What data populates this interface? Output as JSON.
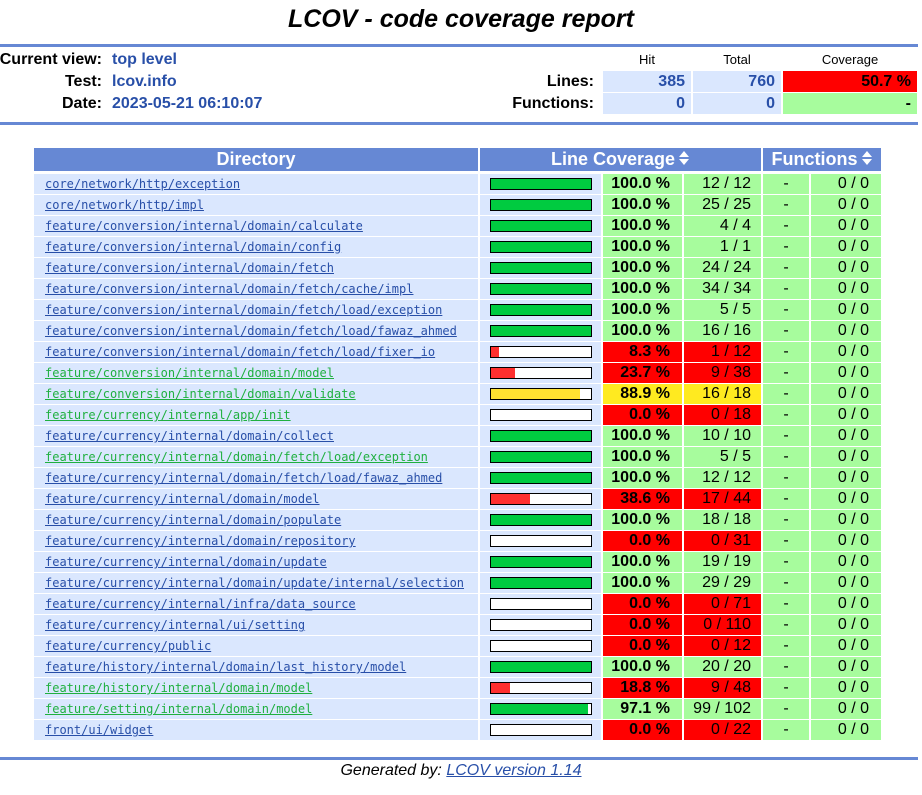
{
  "title": "LCOV - code coverage report",
  "header": {
    "current_view_label": "Current view:",
    "current_view": "top level",
    "test_label": "Test:",
    "test": "lcov.info",
    "date_label": "Date:",
    "date": "2023-05-21 06:10:07",
    "col_hit": "Hit",
    "col_total": "Total",
    "col_coverage": "Coverage",
    "lines_label": "Lines:",
    "lines_hit": "385",
    "lines_total": "760",
    "lines_coverage": "50.7 %",
    "functions_label": "Functions:",
    "functions_hit": "0",
    "functions_total": "0",
    "functions_coverage": "-"
  },
  "table": {
    "col_directory": "Directory",
    "col_line_coverage": "Line Coverage",
    "col_functions": "Functions"
  },
  "colors": {
    "header_blue": "#6688d4",
    "cell_blue": "#dae7fe",
    "link_blue": "#284fa8",
    "visited_green": "#20b040",
    "hi_green": "#a7fc9d",
    "med_yellow": "#ffea20",
    "lo_red": "#ff0000",
    "bar_green": "#00cb40",
    "bar_yellow": "#ffe231",
    "bar_red": "#ff2f2f"
  },
  "rows": [
    {
      "dir": "core/network/http/exception",
      "pct": "100.0 %",
      "count": "12 / 12",
      "ratio": 1.0,
      "level": "hi",
      "visited": false,
      "frate": "-",
      "fcount": "0 / 0"
    },
    {
      "dir": "core/network/http/impl",
      "pct": "100.0 %",
      "count": "25 / 25",
      "ratio": 1.0,
      "level": "hi",
      "visited": false,
      "frate": "-",
      "fcount": "0 / 0"
    },
    {
      "dir": "feature/conversion/internal/domain/calculate",
      "pct": "100.0 %",
      "count": "4 / 4",
      "ratio": 1.0,
      "level": "hi",
      "visited": false,
      "frate": "-",
      "fcount": "0 / 0"
    },
    {
      "dir": "feature/conversion/internal/domain/config",
      "pct": "100.0 %",
      "count": "1 / 1",
      "ratio": 1.0,
      "level": "hi",
      "visited": false,
      "frate": "-",
      "fcount": "0 / 0"
    },
    {
      "dir": "feature/conversion/internal/domain/fetch",
      "pct": "100.0 %",
      "count": "24 / 24",
      "ratio": 1.0,
      "level": "hi",
      "visited": false,
      "frate": "-",
      "fcount": "0 / 0"
    },
    {
      "dir": "feature/conversion/internal/domain/fetch/cache/impl",
      "pct": "100.0 %",
      "count": "34 / 34",
      "ratio": 1.0,
      "level": "hi",
      "visited": false,
      "frate": "-",
      "fcount": "0 / 0"
    },
    {
      "dir": "feature/conversion/internal/domain/fetch/load/exception",
      "pct": "100.0 %",
      "count": "5 / 5",
      "ratio": 1.0,
      "level": "hi",
      "visited": false,
      "frate": "-",
      "fcount": "0 / 0"
    },
    {
      "dir": "feature/conversion/internal/domain/fetch/load/fawaz_ahmed",
      "pct": "100.0 %",
      "count": "16 / 16",
      "ratio": 1.0,
      "level": "hi",
      "visited": false,
      "frate": "-",
      "fcount": "0 / 0"
    },
    {
      "dir": "feature/conversion/internal/domain/fetch/load/fixer_io",
      "pct": "8.3 %",
      "count": "1 / 12",
      "ratio": 0.083,
      "level": "lo",
      "visited": false,
      "frate": "-",
      "fcount": "0 / 0"
    },
    {
      "dir": "feature/conversion/internal/domain/model",
      "pct": "23.7 %",
      "count": "9 / 38",
      "ratio": 0.237,
      "level": "lo",
      "visited": true,
      "frate": "-",
      "fcount": "0 / 0"
    },
    {
      "dir": "feature/conversion/internal/domain/validate",
      "pct": "88.9 %",
      "count": "16 / 18",
      "ratio": 0.889,
      "level": "med",
      "visited": true,
      "frate": "-",
      "fcount": "0 / 0"
    },
    {
      "dir": "feature/currency/internal/app/init",
      "pct": "0.0 %",
      "count": "0 / 18",
      "ratio": 0.0,
      "level": "lo",
      "visited": true,
      "frate": "-",
      "fcount": "0 / 0"
    },
    {
      "dir": "feature/currency/internal/domain/collect",
      "pct": "100.0 %",
      "count": "10 / 10",
      "ratio": 1.0,
      "level": "hi",
      "visited": false,
      "frate": "-",
      "fcount": "0 / 0"
    },
    {
      "dir": "feature/currency/internal/domain/fetch/load/exception",
      "pct": "100.0 %",
      "count": "5 / 5",
      "ratio": 1.0,
      "level": "hi",
      "visited": true,
      "frate": "-",
      "fcount": "0 / 0"
    },
    {
      "dir": "feature/currency/internal/domain/fetch/load/fawaz_ahmed",
      "pct": "100.0 %",
      "count": "12 / 12",
      "ratio": 1.0,
      "level": "hi",
      "visited": false,
      "frate": "-",
      "fcount": "0 / 0"
    },
    {
      "dir": "feature/currency/internal/domain/model",
      "pct": "38.6 %",
      "count": "17 / 44",
      "ratio": 0.386,
      "level": "lo",
      "visited": false,
      "frate": "-",
      "fcount": "0 / 0"
    },
    {
      "dir": "feature/currency/internal/domain/populate",
      "pct": "100.0 %",
      "count": "18 / 18",
      "ratio": 1.0,
      "level": "hi",
      "visited": false,
      "frate": "-",
      "fcount": "0 / 0"
    },
    {
      "dir": "feature/currency/internal/domain/repository",
      "pct": "0.0 %",
      "count": "0 / 31",
      "ratio": 0.0,
      "level": "lo",
      "visited": false,
      "frate": "-",
      "fcount": "0 / 0"
    },
    {
      "dir": "feature/currency/internal/domain/update",
      "pct": "100.0 %",
      "count": "19 / 19",
      "ratio": 1.0,
      "level": "hi",
      "visited": false,
      "frate": "-",
      "fcount": "0 / 0"
    },
    {
      "dir": "feature/currency/internal/domain/update/internal/selection",
      "pct": "100.0 %",
      "count": "29 / 29",
      "ratio": 1.0,
      "level": "hi",
      "visited": false,
      "frate": "-",
      "fcount": "0 / 0"
    },
    {
      "dir": "feature/currency/internal/infra/data_source",
      "pct": "0.0 %",
      "count": "0 / 71",
      "ratio": 0.0,
      "level": "lo",
      "visited": false,
      "frate": "-",
      "fcount": "0 / 0"
    },
    {
      "dir": "feature/currency/internal/ui/setting",
      "pct": "0.0 %",
      "count": "0 / 110",
      "ratio": 0.0,
      "level": "lo",
      "visited": false,
      "frate": "-",
      "fcount": "0 / 0"
    },
    {
      "dir": "feature/currency/public",
      "pct": "0.0 %",
      "count": "0 / 12",
      "ratio": 0.0,
      "level": "lo",
      "visited": false,
      "frate": "-",
      "fcount": "0 / 0"
    },
    {
      "dir": "feature/history/internal/domain/last_history/model",
      "pct": "100.0 %",
      "count": "20 / 20",
      "ratio": 1.0,
      "level": "hi",
      "visited": false,
      "frate": "-",
      "fcount": "0 / 0"
    },
    {
      "dir": "feature/history/internal/domain/model",
      "pct": "18.8 %",
      "count": "9 / 48",
      "ratio": 0.188,
      "level": "lo",
      "visited": true,
      "frate": "-",
      "fcount": "0 / 0"
    },
    {
      "dir": "feature/setting/internal/domain/model",
      "pct": "97.1 %",
      "count": "99 / 102",
      "ratio": 0.971,
      "level": "hi",
      "visited": true,
      "frate": "-",
      "fcount": "0 / 0"
    },
    {
      "dir": "front/ui/widget",
      "pct": "0.0 %",
      "count": "0 / 22",
      "ratio": 0.0,
      "level": "lo",
      "visited": false,
      "frate": "-",
      "fcount": "0 / 0"
    }
  ],
  "footer": {
    "prefix": "Generated by:",
    "link": "LCOV version 1.14"
  }
}
